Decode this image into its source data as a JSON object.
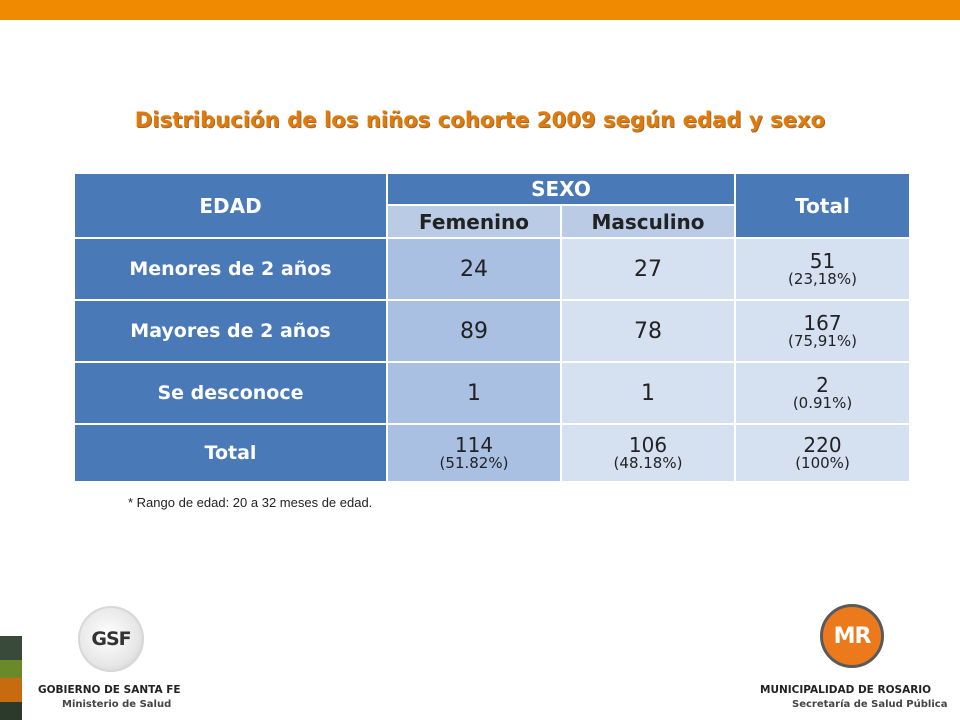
{
  "title": "Distribución de los niños cohorte 2009 según edad y sexo",
  "table": {
    "headers": {
      "edad": "EDAD",
      "sexo": "SEXO",
      "femenino": "Femenino",
      "masculino": "Masculino",
      "total": "Total"
    },
    "rows": [
      {
        "label": "Menores de 2 años",
        "femenino": "24",
        "masculino": "27",
        "total": "51",
        "total_pct": "(23,18%)"
      },
      {
        "label": "Mayores de 2 años",
        "femenino": "89",
        "masculino": "78",
        "total": "167",
        "total_pct": "(75,91%)"
      },
      {
        "label": "Se desconoce",
        "femenino": "1",
        "masculino": "1",
        "total": "2",
        "total_pct": "(0.91%)"
      }
    ],
    "total_row": {
      "label": "Total",
      "femenino": "114",
      "femenino_pct": "(51.82%)",
      "masculino": "106",
      "masculino_pct": "(48.18%)",
      "total": "220",
      "total_pct": "(100%)"
    }
  },
  "note": "* Rango de edad: 20 a 32 meses de edad.",
  "logos": {
    "gsf": {
      "mark": "GSF",
      "name": "GOBIERNO DE SANTA FE",
      "sub": "Ministerio de Salud"
    },
    "mr": {
      "mark": "MR",
      "name": "MUNICIPALIDAD DE ROSARIO",
      "sub": "Secretaría de Salud Pública"
    }
  },
  "colors": {
    "accent": "#f08a00",
    "title": "#e07b0a",
    "header_blue": "#4a79b8",
    "cell_light": "#d5e0f1",
    "cell_mid": "#a9c0e2"
  }
}
